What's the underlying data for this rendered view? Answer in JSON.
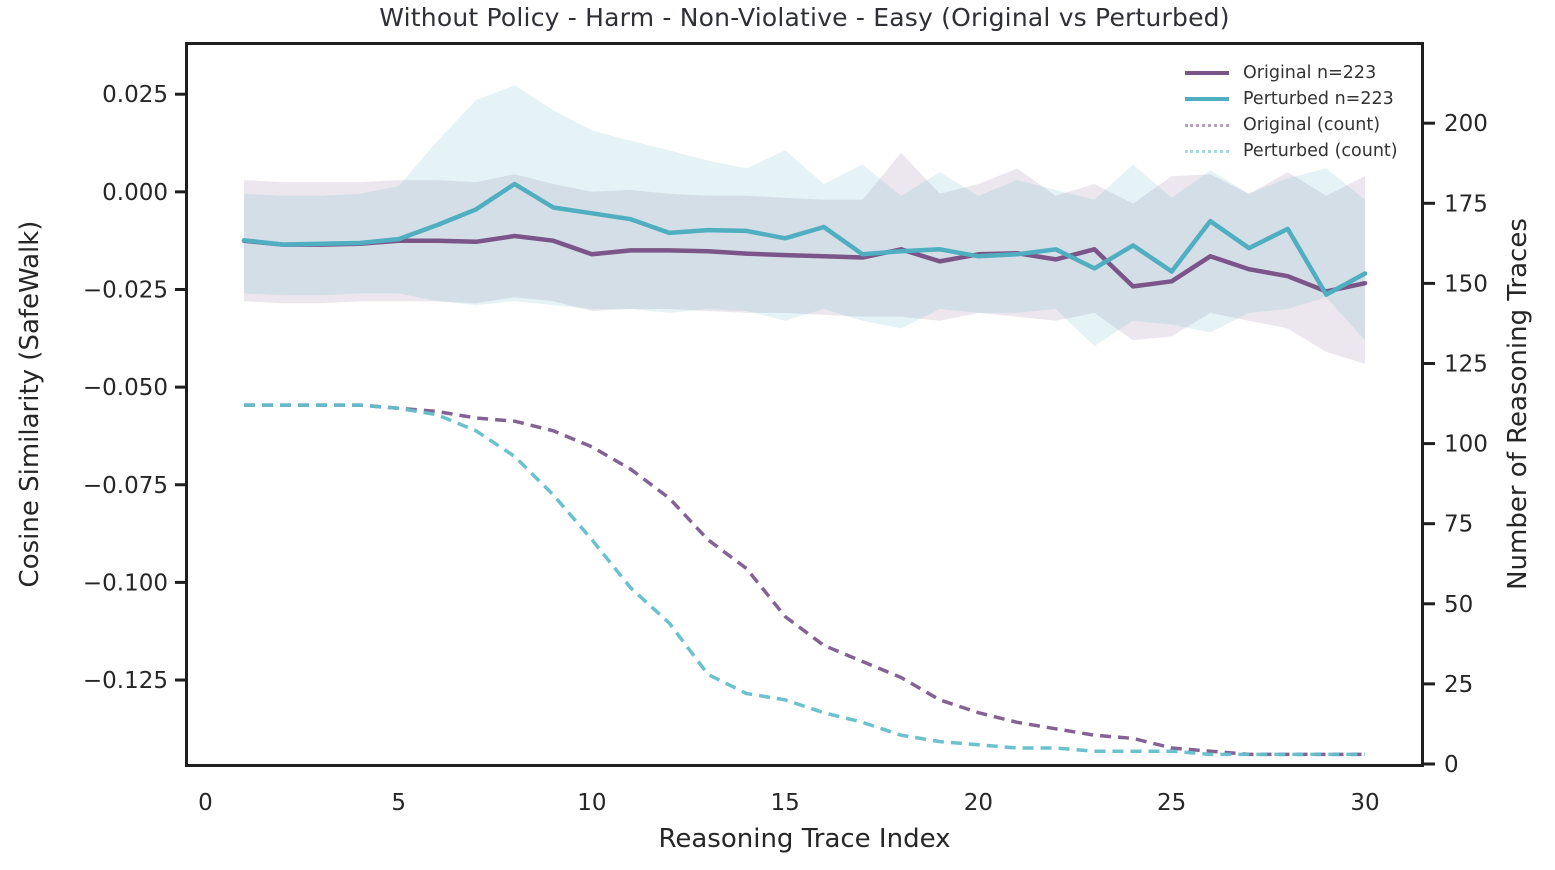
{
  "figure": {
    "title": "Without Policy - Harm - Non-Violative - Easy (Original vs Perturbed)",
    "x_label": "Reasoning Trace Index",
    "y_left_label": "Cosine Similarity (SafeWalk)",
    "y_right_label": "Number of Reasoning Traces"
  },
  "legend": {
    "items": [
      {
        "label": "Original n=223",
        "color": "#7b5488",
        "style": "solid"
      },
      {
        "label": "Perturbed n=223",
        "color": "#4faec0",
        "style": "solid"
      },
      {
        "label": "Original (count)",
        "color": "#7b5488",
        "style": "dotted"
      },
      {
        "label": "Perturbed (count)",
        "color": "#5fbac9",
        "style": "dotted"
      }
    ]
  },
  "colors": {
    "original": "#7b5488",
    "perturbed": "#4faec0",
    "original_count": "#7e5a8f",
    "perturbed_count": "#63becb",
    "spine": "#1f1f1f",
    "tick_text": "#262626",
    "title_text": "#2e3036"
  },
  "chart_data": {
    "type": "line",
    "title": "Without Policy - Harm - Non-Violative - Easy (Original vs Perturbed)",
    "xlabel": "Reasoning Trace Index",
    "ylabel_left": "Cosine Similarity (SafeWalk)",
    "ylabel_right": "Number of Reasoning Traces",
    "grid": false,
    "legend_position": "upper right",
    "xlim": [
      -0.45,
      31.45
    ],
    "ylim_left": [
      -0.1465,
      0.0376
    ],
    "ylim_right": [
      0,
      224.4
    ],
    "x_ticks": [
      0,
      5,
      10,
      15,
      20,
      25,
      30
    ],
    "left_ticks": [
      {
        "v": 0.025,
        "label": "0.025"
      },
      {
        "v": 0.0,
        "label": "0.000"
      },
      {
        "v": -0.025,
        "label": "−0.025"
      },
      {
        "v": -0.05,
        "label": "−0.050"
      },
      {
        "v": -0.075,
        "label": "−0.075"
      },
      {
        "v": -0.1,
        "label": "−0.100"
      },
      {
        "v": -0.125,
        "label": "−0.125"
      }
    ],
    "right_ticks": [
      {
        "v": 0,
        "label": "0"
      },
      {
        "v": 25,
        "label": "25"
      },
      {
        "v": 50,
        "label": "50"
      },
      {
        "v": 75,
        "label": "75"
      },
      {
        "v": 100,
        "label": "100"
      },
      {
        "v": 125,
        "label": "125"
      },
      {
        "v": 150,
        "label": "150"
      },
      {
        "v": 175,
        "label": "175"
      },
      {
        "v": 200,
        "label": "200"
      }
    ],
    "x": [
      1,
      2,
      3,
      4,
      5,
      6,
      7,
      8,
      9,
      10,
      11,
      12,
      13,
      14,
      15,
      16,
      17,
      18,
      19,
      20,
      21,
      22,
      23,
      24,
      25,
      26,
      27,
      28,
      29,
      30
    ],
    "series": [
      {
        "name": "Original n=223",
        "axis": "left",
        "style": "solid",
        "color": "#7b5488",
        "opacity": 1,
        "width": 4.5,
        "values": [
          -0.0125,
          -0.0135,
          -0.0135,
          -0.0133,
          -0.0125,
          -0.0125,
          -0.0128,
          -0.0113,
          -0.0125,
          -0.016,
          -0.015,
          -0.015,
          -0.0152,
          -0.0158,
          -0.0162,
          -0.0165,
          -0.0168,
          -0.0147,
          -0.0178,
          -0.016,
          -0.0157,
          -0.0173,
          -0.0147,
          -0.0242,
          -0.0229,
          -0.0165,
          -0.0198,
          -0.0216,
          -0.0255,
          -0.0234
        ]
      },
      {
        "name": "Perturbed n=223",
        "axis": "left",
        "style": "solid",
        "color": "#4faec0",
        "opacity": 1,
        "width": 4.5,
        "values": [
          -0.0124,
          -0.0135,
          -0.0133,
          -0.0131,
          -0.0121,
          -0.0085,
          -0.0045,
          0.002,
          -0.004,
          -0.0055,
          -0.007,
          -0.0105,
          -0.0098,
          -0.01,
          -0.0119,
          -0.009,
          -0.016,
          -0.0152,
          -0.0147,
          -0.0165,
          -0.016,
          -0.0147,
          -0.0196,
          -0.0137,
          -0.0204,
          -0.0075,
          -0.0144,
          -0.0095,
          -0.0263,
          -0.0209
        ]
      },
      {
        "name": "Original (count)",
        "axis": "right",
        "style": "dashed",
        "color": "#7e5a8f",
        "opacity": 0.95,
        "width": 3.5,
        "values": [
          112,
          112,
          112,
          112,
          111,
          110,
          108,
          107,
          104,
          99,
          92,
          83,
          70,
          61,
          46,
          37,
          32,
          27,
          20,
          16,
          13,
          11,
          9,
          8,
          5,
          4,
          3,
          3,
          3,
          3
        ]
      },
      {
        "name": "Perturbed (count)",
        "axis": "right",
        "style": "dashed",
        "color": "#63becb",
        "opacity": 0.95,
        "width": 3.5,
        "values": [
          112,
          112,
          112,
          112,
          111,
          109,
          104,
          96,
          84,
          70,
          55,
          44,
          28,
          22,
          20,
          16,
          13,
          9,
          7,
          6,
          5,
          5,
          4,
          4,
          4,
          3,
          3,
          3,
          3,
          3
        ]
      }
    ],
    "bands": [
      {
        "series": "Original n=223",
        "color": "#7b5488",
        "alpha": 0.14,
        "upper": [
          0.003,
          0.0025,
          0.0025,
          0.0025,
          0.003,
          0.003,
          0.0025,
          0.0045,
          0.002,
          0.0,
          0.0005,
          -0.0005,
          -0.001,
          -0.001,
          -0.0015,
          -0.002,
          -0.002,
          0.01,
          -0.0005,
          0.002,
          0.006,
          -0.001,
          0.002,
          -0.003,
          0.004,
          0.0045,
          -0.0005,
          0.005,
          -0.001,
          0.004
        ],
        "lower": [
          -0.028,
          -0.0285,
          -0.0285,
          -0.028,
          -0.028,
          -0.028,
          -0.0285,
          -0.027,
          -0.028,
          -0.0305,
          -0.03,
          -0.03,
          -0.0305,
          -0.031,
          -0.031,
          -0.0315,
          -0.032,
          -0.032,
          -0.033,
          -0.031,
          -0.032,
          -0.033,
          -0.031,
          -0.038,
          -0.037,
          -0.031,
          -0.033,
          -0.035,
          -0.041,
          -0.044
        ]
      },
      {
        "series": "Perturbed n=223",
        "color": "#4faec0",
        "alpha": 0.15,
        "upper": [
          -0.0005,
          -0.001,
          -0.001,
          -0.0005,
          0.0015,
          0.013,
          0.0235,
          0.0273,
          0.0209,
          0.0157,
          0.0131,
          0.0106,
          0.008,
          0.006,
          0.0106,
          0.002,
          0.007,
          -0.001,
          0.005,
          -0.001,
          0.003,
          0.0005,
          -0.002,
          0.007,
          -0.0015,
          0.0055,
          -0.0005,
          0.0035,
          0.006,
          -0.002
        ],
        "lower": [
          -0.026,
          -0.0265,
          -0.0265,
          -0.026,
          -0.026,
          -0.028,
          -0.029,
          -0.028,
          -0.029,
          -0.03,
          -0.03,
          -0.031,
          -0.03,
          -0.0305,
          -0.033,
          -0.03,
          -0.033,
          -0.035,
          -0.03,
          -0.031,
          -0.031,
          -0.03,
          -0.0395,
          -0.033,
          -0.034,
          -0.036,
          -0.031,
          -0.03,
          -0.027,
          -0.038
        ]
      }
    ]
  }
}
